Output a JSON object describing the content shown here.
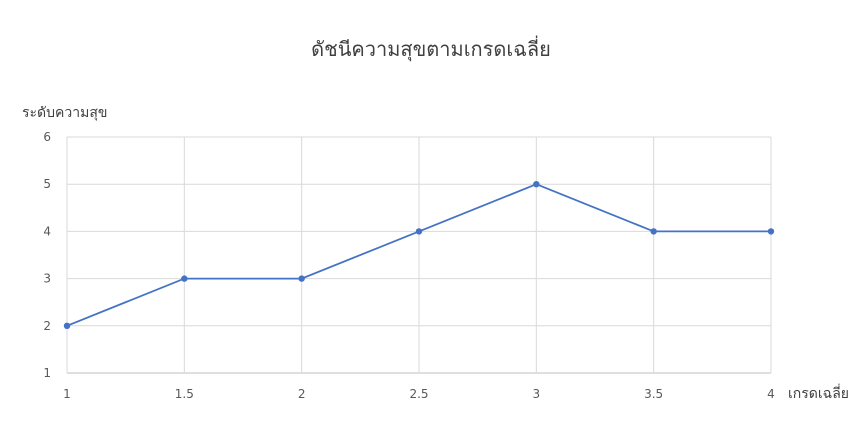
{
  "chart_data": {
    "type": "line",
    "title": "ดัชนีความสุขตามเกรดเฉลี่ย",
    "xlabel": "เกรดเฉลี่ย",
    "ylabel": "ระดับความสุข",
    "x": [
      1,
      1.5,
      2,
      2.5,
      3,
      3.5,
      4
    ],
    "series": [
      {
        "values": [
          2,
          3,
          3,
          4,
          5,
          4,
          4
        ],
        "color": "#4472c4"
      }
    ],
    "xlim": [
      1,
      4
    ],
    "ylim": [
      1,
      6
    ],
    "xticks": [
      "1",
      "1.5",
      "2",
      "2.5",
      "3",
      "3.5",
      "4"
    ],
    "yticks": [
      "1",
      "2",
      "3",
      "4",
      "5",
      "6"
    ],
    "grid": true,
    "legend": "none"
  }
}
